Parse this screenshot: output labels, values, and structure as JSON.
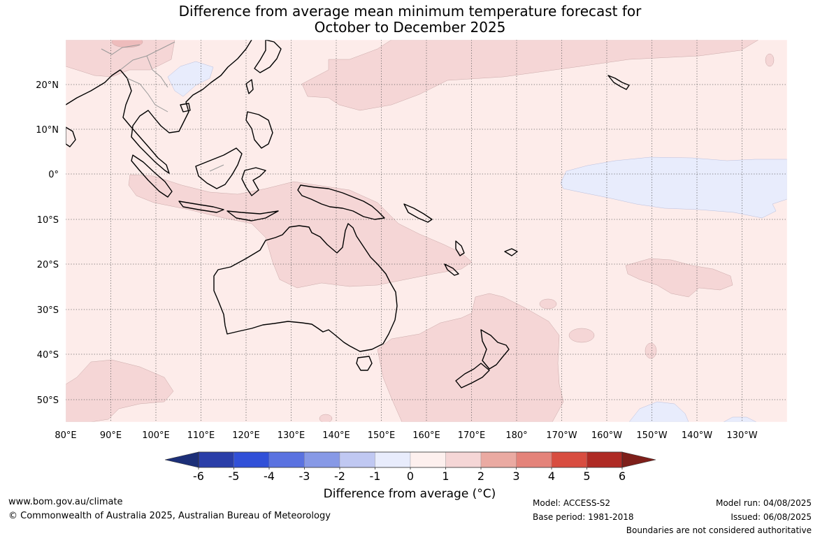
{
  "title_line1": "Difference from average mean minimum temperature forecast for",
  "title_line2": "October to December 2025",
  "map": {
    "lon_labels": [
      "80°E",
      "90°E",
      "100°E",
      "110°E",
      "120°E",
      "130°E",
      "140°E",
      "150°E",
      "160°E",
      "170°E",
      "180°",
      "170°W",
      "160°W",
      "150°W",
      "140°W",
      "130°W"
    ],
    "lat_labels": [
      "20°N",
      "10°N",
      "0°",
      "10°S",
      "20°S",
      "30°S",
      "40°S",
      "50°S"
    ],
    "lon_range": [
      "80°E",
      "160°W"
    ],
    "lat_range": [
      "30°N",
      "55°S"
    ]
  },
  "colorbar": {
    "tick_labels": [
      "-6",
      "-5",
      "-4",
      "-3",
      "-2",
      "-1",
      "0",
      "1",
      "2",
      "3",
      "4",
      "5",
      "6"
    ],
    "colors": [
      "#1c2f78",
      "#2a3ea8",
      "#3150d8",
      "#5a72e0",
      "#8799e6",
      "#c0c8f2",
      "#e8ecfc",
      "#fdf0ee",
      "#f5d6d6",
      "#eaaaa2",
      "#e4837a",
      "#d84d40",
      "#ae2a24",
      "#7e1f1a"
    ],
    "title": "Difference from average (°C)"
  },
  "map_fill_colors": {
    "neutral": "#fdecea",
    "light_warm": "#f5d6d6",
    "light_cool": "#e8ecfc"
  },
  "footer": {
    "website": "www.bom.gov.au/climate",
    "copyright": "© Commonwealth of Australia 2025, Australian Bureau of Meteorology",
    "model": "Model: ACCESS-S2",
    "base_period": "Base period: 1981-2018",
    "model_run": "Model run: 04/08/2025",
    "issued": "Issued: 06/08/2025",
    "disclaimer": "Boundaries are not considered authoritative"
  }
}
